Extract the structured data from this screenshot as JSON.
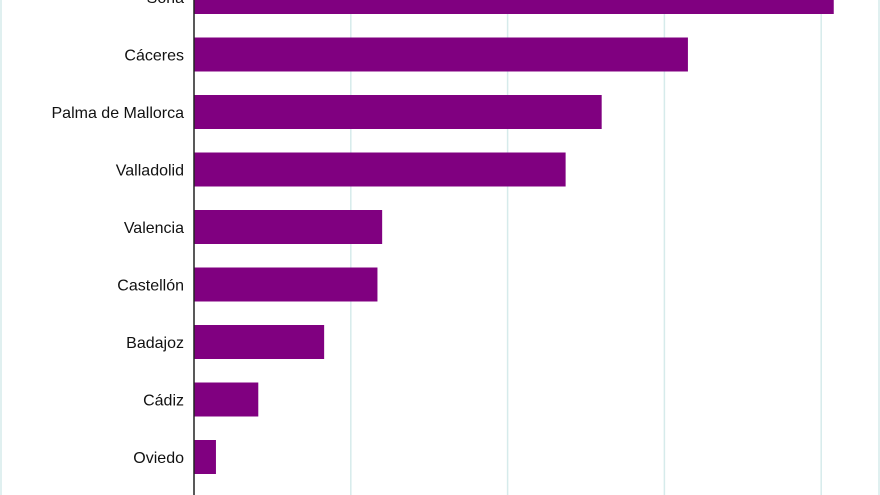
{
  "chart_data": {
    "type": "bar",
    "orientation": "horizontal",
    "categories": [
      "Soria",
      "Cáceres",
      "Palma de Mallorca",
      "Valladolid",
      "Valencia",
      "Castellón",
      "Badajoz",
      "Cádiz",
      "Oviedo"
    ],
    "values": [
      40.8,
      31.5,
      26.0,
      23.7,
      12.0,
      11.7,
      8.3,
      4.1,
      1.4
    ],
    "xlim": [
      0,
      44
    ],
    "grid": true,
    "title": "",
    "xlabel": "",
    "ylabel": "",
    "colors": {
      "bar": "#800080",
      "grid": "#d6ebeb",
      "axis": "#222222"
    }
  }
}
